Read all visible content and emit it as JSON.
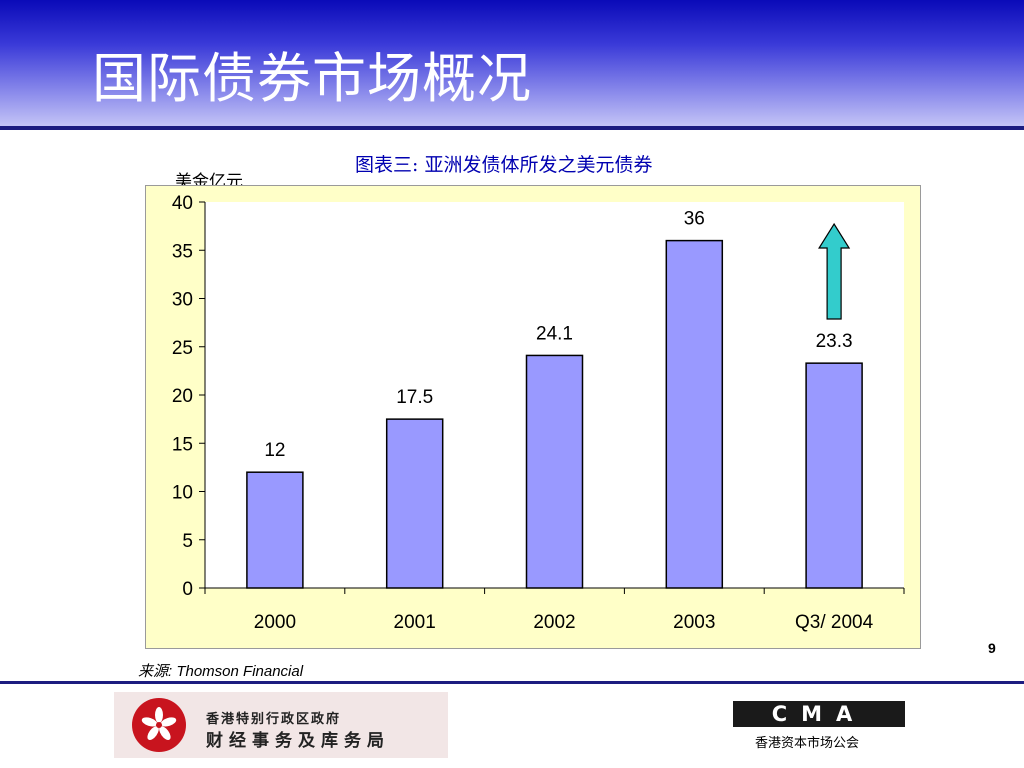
{
  "slide": {
    "title": "国际债券市场概况",
    "page_number": "9",
    "source": "来源:  Thomson Financial"
  },
  "chart_data": {
    "type": "bar",
    "title": "图表三: 亚洲发债体所发之美元债券",
    "ylabel": "美金亿元",
    "xlabel": "",
    "categories": [
      "2000",
      "2001",
      "2002",
      "2003",
      "Q3/ 2004"
    ],
    "values": [
      12,
      17.5,
      24.1,
      36,
      23.3
    ],
    "data_labels": [
      "12",
      "17.5",
      "24.1",
      "36",
      "23.3"
    ],
    "ylim": [
      0,
      40
    ],
    "yticks": [
      0,
      5,
      10,
      15,
      20,
      25,
      30,
      35,
      40
    ],
    "grid": false,
    "legend": "none",
    "colors": {
      "bar": "#9999ff",
      "bar_outline": "#000000",
      "plot_bg": "#ffffff",
      "chart_bg": "#ffffc8",
      "arrow": "#33cccc"
    },
    "annotations": [
      "up-arrow above Q3/ 2004 bar"
    ]
  },
  "footer": {
    "left_logo_line1": "香港特别行政区政府",
    "left_logo_line2": "财经事务及库务局",
    "right_logo_mark": "CMA",
    "right_logo_caption": "香港资本市场公会"
  }
}
